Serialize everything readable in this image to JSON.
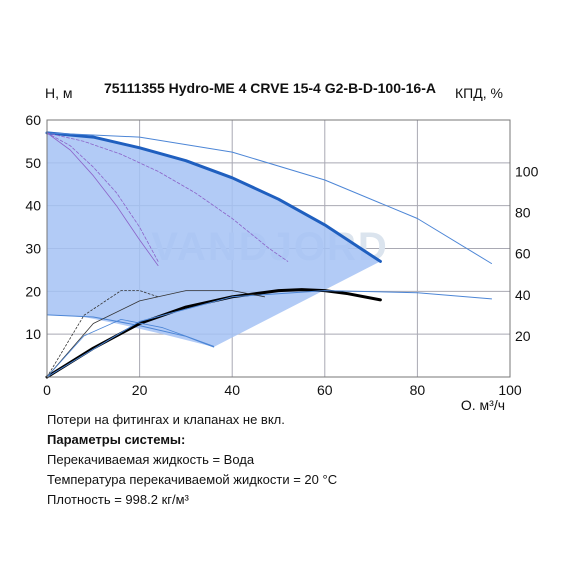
{
  "chart_data": {
    "type": "line",
    "title": "75111355 Hydro-ME 4 CRVE 15-4 G2-B-D-100-16-A",
    "xlabel": "Q, м³/ч",
    "ylabel_left": "H, м",
    "ylabel_right": "КПД, %",
    "xlim": [
      0,
      100
    ],
    "ylim_left": [
      0,
      60
    ],
    "ylim_right": [
      0,
      125
    ],
    "x_ticks": [
      "0",
      "20",
      "40",
      "60",
      "80",
      "100"
    ],
    "y_left_ticks": [
      "10",
      "20",
      "30",
      "40",
      "50",
      "60"
    ],
    "y_right_ticks": [
      "20",
      "40",
      "60",
      "80",
      "100"
    ],
    "y_right_tick_values": [
      20,
      40,
      60,
      80,
      100
    ],
    "grid": true,
    "colors": {
      "grid": "#a9a9b3",
      "area": "#a4c2f4",
      "curve_main": "#1f5fbf",
      "curve_thin": "#4d86d6",
      "curve_purple": "#8b63c9",
      "efficiency": "#000000",
      "efficiency_thin": "#333333"
    },
    "watermark": "VANDJORD",
    "operating_area": {
      "x": [
        0,
        10,
        20,
        30,
        40,
        50,
        60,
        72,
        36,
        25,
        15,
        8,
        0
      ],
      "y": [
        57,
        56,
        53.5,
        50.5,
        46.5,
        41.5,
        35.5,
        27,
        7,
        10,
        12.5,
        14,
        14.5
      ]
    },
    "series": [
      {
        "role": "max-head-curve",
        "x": [
          0,
          10,
          20,
          30,
          40,
          50,
          60,
          72
        ],
        "y": [
          57,
          56,
          53.5,
          50.5,
          46.5,
          41.5,
          35.5,
          27
        ]
      },
      {
        "role": "extended-head-curve",
        "x": [
          0,
          20,
          40,
          60,
          80,
          96
        ],
        "y": [
          57,
          56,
          52.5,
          46,
          37,
          26.5
        ]
      },
      {
        "role": "min-head-curve",
        "x": [
          0,
          10,
          20,
          30,
          36
        ],
        "y": [
          14.5,
          14,
          12,
          9.5,
          7
        ]
      },
      {
        "role": "reduced-speed-1",
        "x": [
          0,
          8,
          16,
          24,
          32,
          40,
          48,
          52
        ],
        "y": [
          57,
          55,
          52,
          48,
          43,
          37,
          30,
          27
        ]
      },
      {
        "role": "reduced-speed-2",
        "x": [
          0,
          5,
          10,
          15,
          20,
          24
        ],
        "y": [
          57,
          54,
          49,
          43,
          35,
          27
        ]
      },
      {
        "role": "reduced-speed-3",
        "x": [
          0,
          5,
          10,
          15,
          20,
          24
        ],
        "y": [
          57,
          53,
          47,
          40,
          32,
          26
        ]
      },
      {
        "role": "efficiency-main",
        "axis": "right",
        "x": [
          0,
          10,
          20,
          30,
          40,
          50,
          55,
          60,
          65,
          72
        ],
        "y": [
          0,
          14,
          26,
          34,
          39,
          42,
          42.5,
          42,
          40.5,
          37.5
        ]
      },
      {
        "role": "efficiency-max-speed",
        "axis": "right",
        "x": [
          0,
          20,
          40,
          60,
          80,
          96
        ],
        "y": [
          0,
          27,
          39,
          42,
          41,
          38
        ]
      },
      {
        "role": "efficiency-speed-2",
        "axis": "right",
        "x": [
          0,
          10,
          20,
          30,
          40,
          47
        ],
        "y": [
          0,
          26,
          37,
          42,
          42,
          39
        ]
      },
      {
        "role": "efficiency-speed-3",
        "axis": "right",
        "x": [
          0,
          8,
          16,
          20,
          24
        ],
        "y": [
          0,
          30,
          42,
          42,
          39
        ]
      },
      {
        "role": "efficiency-min-speed",
        "axis": "right",
        "x": [
          0,
          8,
          16,
          25,
          36
        ],
        "y": [
          0,
          20,
          28,
          24,
          15
        ]
      }
    ]
  },
  "notes": {
    "line1": "Потери на фитингах и клапанах не вкл.",
    "heading": "Параметры системы:",
    "line2": "Перекачиваемая жидкость = Вода",
    "line3": "Температура перекачиваемой жидкости = 20 °C",
    "line4": "Плотность = 998.2 кг/м³"
  }
}
